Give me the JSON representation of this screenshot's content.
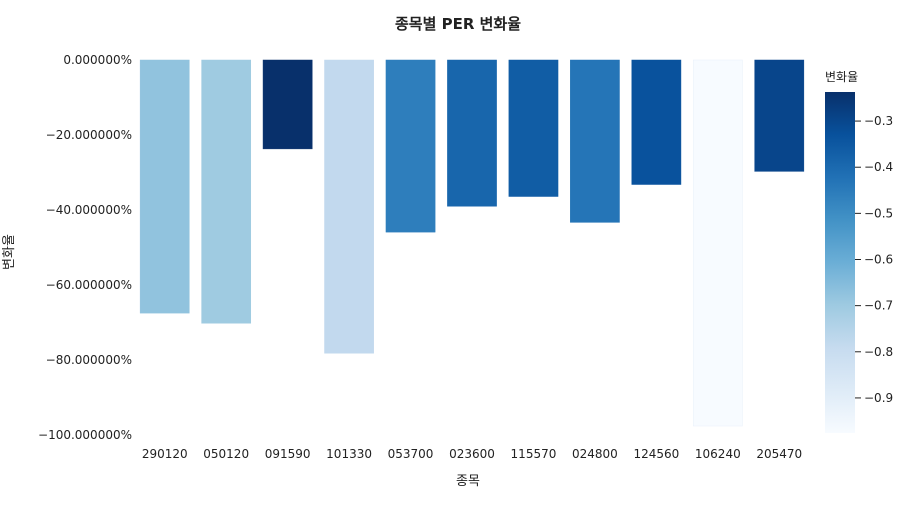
{
  "chart_data": {
    "type": "bar",
    "title": "종목별 PER 변화율",
    "xlabel": "종목",
    "ylabel": "변화율",
    "categories": [
      "290120",
      "050120",
      "091590",
      "101330",
      "053700",
      "023600",
      "115570",
      "024800",
      "124560",
      "106240",
      "205470"
    ],
    "values": [
      -0.675,
      -0.702,
      -0.237,
      -0.782,
      -0.459,
      -0.39,
      -0.364,
      -0.433,
      -0.332,
      -0.976,
      -0.297
    ],
    "ylim": [
      -1.0,
      0.0
    ],
    "yticks": [
      0,
      -0.2,
      -0.4,
      -0.6,
      -0.8,
      -1.0
    ],
    "ytick_labels": [
      "0.000000%",
      "−20.000000%",
      "−40.000000%",
      "−60.000000%",
      "−80.000000%",
      "−100.000000%"
    ],
    "grid": false,
    "colorbar": {
      "title": "변화율",
      "colormap": "Blues",
      "range": [
        -0.976,
        -0.237
      ],
      "ticks": [
        -0.3,
        -0.4,
        -0.5,
        -0.6,
        -0.7,
        -0.8,
        -0.9
      ],
      "tick_labels": [
        "−0.3",
        "−0.4",
        "−0.5",
        "−0.6",
        "−0.7",
        "−0.8",
        "−0.9"
      ],
      "stops": [
        "#f7fbff",
        "#deebf7",
        "#c6dbef",
        "#9ecae1",
        "#6baed6",
        "#4292c6",
        "#2171b5",
        "#08519c",
        "#08306b"
      ]
    }
  }
}
